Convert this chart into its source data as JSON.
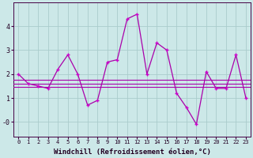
{
  "xlabel": "Windchill (Refroidissement éolien,°C)",
  "bg_color": "#cce8e8",
  "grid_color": "#aacccc",
  "line_color": "#aa00aa",
  "marker_color": "#cc00cc",
  "x_values": [
    0,
    1,
    2,
    3,
    4,
    5,
    6,
    7,
    8,
    9,
    10,
    11,
    12,
    13,
    14,
    15,
    16,
    17,
    18,
    19,
    20,
    21,
    22,
    23
  ],
  "y_main": [
    2.0,
    1.6,
    1.5,
    1.4,
    2.2,
    2.8,
    2.0,
    0.7,
    0.9,
    2.5,
    2.6,
    4.3,
    4.5,
    2.0,
    3.3,
    3.0,
    1.2,
    0.6,
    -0.1,
    2.1,
    1.4,
    1.4,
    2.8,
    1.0
  ],
  "y_line1": 1.75,
  "y_line2": 1.6,
  "y_line3": 1.45,
  "ylim": [
    -0.6,
    5.0
  ],
  "xlim": [
    -0.5,
    23.5
  ],
  "yticks": [
    0,
    1,
    2,
    3,
    4
  ],
  "ytick_labels": [
    "-0",
    "1",
    "2",
    "3",
    "4"
  ],
  "xtick_labels": [
    "0",
    "1",
    "2",
    "3",
    "4",
    "5",
    "6",
    "7",
    "8",
    "9",
    "10",
    "11",
    "12",
    "13",
    "14",
    "15",
    "16",
    "17",
    "18",
    "19",
    "20",
    "21",
    "22",
    "23"
  ],
  "xlabel_fontsize": 6.5,
  "ytick_fontsize": 6,
  "xtick_fontsize": 5,
  "linewidth": 0.9,
  "flat_linewidth": 0.8,
  "marker": "+"
}
